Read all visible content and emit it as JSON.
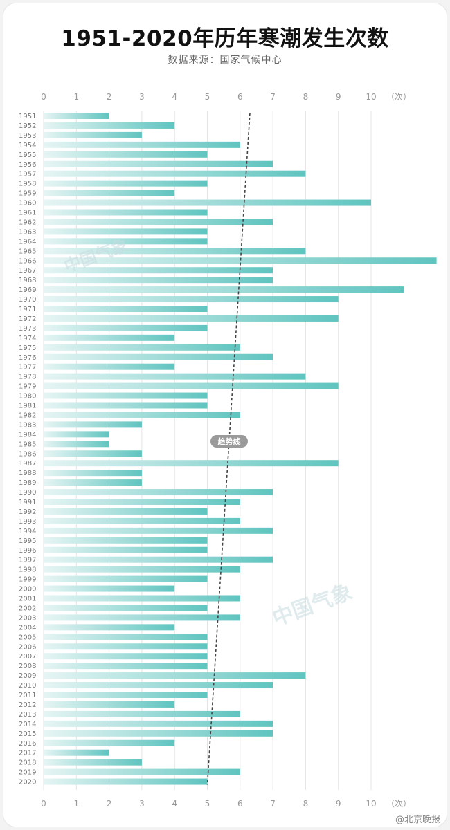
{
  "chart_data": {
    "type": "bar",
    "orientation": "horizontal",
    "title": "1951-2020年历年寒潮发生次数",
    "subtitle": "数据来源：国家气候中心",
    "axis_unit": "（次）",
    "xlim": [
      0,
      12
    ],
    "ticks": [
      0,
      1,
      2,
      3,
      4,
      5,
      6,
      7,
      8,
      9,
      10
    ],
    "categories": [
      "1951",
      "1952",
      "1953",
      "1954",
      "1955",
      "1956",
      "1957",
      "1958",
      "1959",
      "1960",
      "1961",
      "1962",
      "1963",
      "1964",
      "1965",
      "1966",
      "1967",
      "1968",
      "1969",
      "1970",
      "1971",
      "1972",
      "1973",
      "1974",
      "1975",
      "1976",
      "1977",
      "1978",
      "1979",
      "1980",
      "1981",
      "1982",
      "1983",
      "1984",
      "1985",
      "1986",
      "1987",
      "1988",
      "1989",
      "1990",
      "1991",
      "1992",
      "1993",
      "1994",
      "1995",
      "1996",
      "1997",
      "1998",
      "1999",
      "2000",
      "2001",
      "2002",
      "2003",
      "2004",
      "2005",
      "2006",
      "2007",
      "2008",
      "2009",
      "2010",
      "2011",
      "2012",
      "2013",
      "2014",
      "2015",
      "2016",
      "2017",
      "2018",
      "2019",
      "2020"
    ],
    "values": [
      2,
      4,
      3,
      6,
      5,
      7,
      8,
      5,
      4,
      10,
      5,
      7,
      5,
      5,
      8,
      12,
      7,
      7,
      11,
      9,
      5,
      9,
      5,
      4,
      6,
      7,
      4,
      8,
      9,
      5,
      5,
      6,
      3,
      2,
      2,
      3,
      9,
      3,
      3,
      7,
      6,
      5,
      6,
      7,
      5,
      5,
      7,
      6,
      5,
      4,
      6,
      5,
      6,
      4,
      5,
      5,
      5,
      5,
      8,
      7,
      5,
      4,
      6,
      7,
      7,
      4,
      2,
      3,
      6,
      5
    ],
    "trend": {
      "label": "趋势线",
      "start_value": 6.3,
      "end_value": 5.0
    }
  },
  "watermark": "中国气象",
  "credit": "@北京晚报",
  "colors": {
    "bar_start": "#e6f5f4",
    "bar_end": "#5fc4bf",
    "trend": "#444444"
  }
}
